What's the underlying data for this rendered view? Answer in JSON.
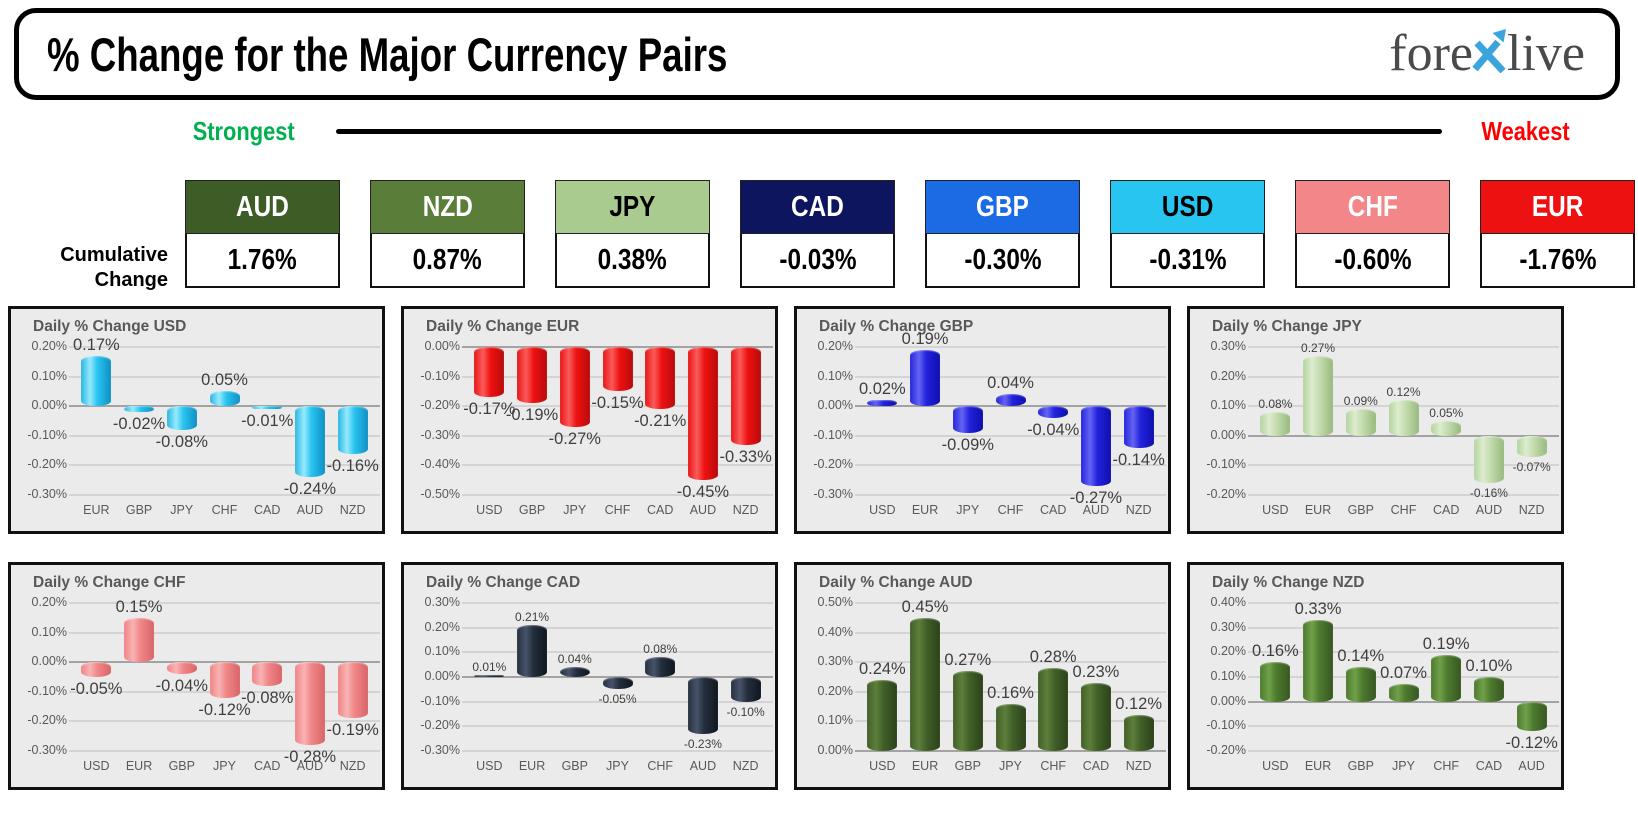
{
  "header": {
    "title": "% Change for the Major Currency Pairs",
    "logo": {
      "part1": "fore",
      "part2": "live",
      "x_color": "#3aa5dd",
      "text_color": "#4a4a4c"
    }
  },
  "legend": {
    "strongest": "Strongest",
    "weakest": "Weakest",
    "strongest_color": "#00b050",
    "weakest_color": "#ff0000"
  },
  "cumulative": {
    "label_line1": "Cumulative",
    "label_line2": "Change",
    "items": [
      {
        "code": "AUD",
        "value": "1.76%",
        "bg": "#3e5c26",
        "fg": "#ffffff"
      },
      {
        "code": "NZD",
        "value": "0.87%",
        "bg": "#5a7d39",
        "fg": "#ffffff"
      },
      {
        "code": "JPY",
        "value": "0.38%",
        "bg": "#a9cb8f",
        "fg": "#000000"
      },
      {
        "code": "CAD",
        "value": "-0.03%",
        "bg": "#0c155e",
        "fg": "#ffffff"
      },
      {
        "code": "GBP",
        "value": "-0.30%",
        "bg": "#1b6ce4",
        "fg": "#ffffff"
      },
      {
        "code": "USD",
        "value": "-0.31%",
        "bg": "#28c5f0",
        "fg": "#000000"
      },
      {
        "code": "CHF",
        "value": "-0.60%",
        "bg": "#f38688",
        "fg": "#ffffff"
      },
      {
        "code": "EUR",
        "value": "-1.76%",
        "bg": "#ee1111",
        "fg": "#ffffff"
      }
    ]
  },
  "chart_data": [
    {
      "type": "bar",
      "key": "USD",
      "title": "Daily % Change USD",
      "categories": [
        "EUR",
        "GBP",
        "JPY",
        "CHF",
        "CAD",
        "AUD",
        "NZD"
      ],
      "values": [
        0.17,
        -0.02,
        -0.08,
        0.05,
        -0.01,
        -0.24,
        -0.16
      ],
      "labels": [
        "0.17%",
        "-0.02%",
        "-0.08%",
        "0.05%",
        "-0.01%",
        "-0.24%",
        "-0.16%"
      ],
      "ticks": [
        "0.20%",
        "0.10%",
        "0.00%",
        "-0.10%",
        "-0.20%",
        "-0.30%"
      ],
      "ylim": [
        -0.3,
        0.2
      ],
      "label_size": "large",
      "grid": true,
      "legend": "none",
      "gradient": [
        "#2ab6e3",
        "#96eafc",
        "#29c3ef",
        "#0f90c4"
      ]
    },
    {
      "type": "bar",
      "key": "EUR",
      "title": "Daily % Change EUR",
      "categories": [
        "USD",
        "GBP",
        "JPY",
        "CHF",
        "CAD",
        "AUD",
        "NZD"
      ],
      "values": [
        -0.17,
        -0.19,
        -0.27,
        -0.15,
        -0.21,
        -0.45,
        -0.33
      ],
      "labels": [
        "-0.17%",
        "-0.19%",
        "-0.27%",
        "-0.15%",
        "-0.21%",
        "-0.45%",
        "-0.33%"
      ],
      "ticks": [
        "0.00%",
        "-0.10%",
        "-0.20%",
        "-0.30%",
        "-0.40%",
        "-0.50%"
      ],
      "ylim": [
        -0.5,
        0.0
      ],
      "label_size": "large",
      "grid": true,
      "legend": "none",
      "gradient": [
        "#e81616",
        "#fb5b5b",
        "#ee1111",
        "#b80b0b"
      ]
    },
    {
      "type": "bar",
      "key": "GBP",
      "title": "Daily % Change GBP",
      "categories": [
        "USD",
        "EUR",
        "JPY",
        "CHF",
        "CAD",
        "AUD",
        "NZD"
      ],
      "values": [
        0.02,
        0.19,
        -0.09,
        0.04,
        -0.04,
        -0.27,
        -0.14
      ],
      "labels": [
        "0.02%",
        "0.19%",
        "-0.09%",
        "0.04%",
        "-0.04%",
        "-0.27%",
        "-0.14%"
      ],
      "ticks": [
        "0.20%",
        "0.10%",
        "0.00%",
        "-0.10%",
        "-0.20%",
        "-0.30%"
      ],
      "ylim": [
        -0.3,
        0.2
      ],
      "label_size": "large",
      "grid": true,
      "legend": "none",
      "gradient": [
        "#2626dd",
        "#6363f2",
        "#2222dd",
        "#0f0fae"
      ]
    },
    {
      "type": "bar",
      "key": "JPY",
      "title": "Daily % Change JPY",
      "categories": [
        "USD",
        "EUR",
        "GBP",
        "CHF",
        "CAD",
        "AUD",
        "NZD"
      ],
      "values": [
        0.08,
        0.27,
        0.09,
        0.12,
        0.05,
        -0.16,
        -0.07
      ],
      "labels": [
        "0.08%",
        "0.27%",
        "0.09%",
        "0.12%",
        "0.05%",
        "-0.16%",
        "-0.07%"
      ],
      "ticks": [
        "0.30%",
        "0.20%",
        "0.10%",
        "0.00%",
        "-0.10%",
        "-0.20%"
      ],
      "ylim": [
        -0.2,
        0.3
      ],
      "label_size": "small",
      "grid": true,
      "legend": "none",
      "gradient": [
        "#b4d49e",
        "#ddeccf",
        "#c4dcae",
        "#97b97e"
      ]
    },
    {
      "type": "bar",
      "key": "CHF",
      "title": "Daily % Change CHF",
      "categories": [
        "USD",
        "EUR",
        "GBP",
        "JPY",
        "CAD",
        "AUD",
        "NZD"
      ],
      "values": [
        -0.05,
        0.15,
        -0.04,
        -0.12,
        -0.08,
        -0.28,
        -0.19
      ],
      "labels": [
        "-0.05%",
        "0.15%",
        "-0.04%",
        "-0.12%",
        "-0.08%",
        "-0.28%",
        "-0.19%"
      ],
      "ticks": [
        "0.20%",
        "0.10%",
        "0.00%",
        "-0.10%",
        "-0.20%",
        "-0.30%"
      ],
      "ylim": [
        -0.3,
        0.2
      ],
      "label_size": "large",
      "grid": true,
      "legend": "none",
      "gradient": [
        "#ef8486",
        "#f8b3b4",
        "#f08688",
        "#d96568"
      ]
    },
    {
      "type": "bar",
      "key": "CAD",
      "title": "Daily % Change CAD",
      "categories": [
        "USD",
        "EUR",
        "GBP",
        "JPY",
        "CHF",
        "AUD",
        "NZD"
      ],
      "values": [
        0.01,
        0.21,
        0.04,
        -0.05,
        0.08,
        -0.23,
        -0.1
      ],
      "labels": [
        "0.01%",
        "0.21%",
        "0.04%",
        "-0.05%",
        "0.08%",
        "-0.23%",
        "-0.10%"
      ],
      "ticks": [
        "0.30%",
        "0.20%",
        "0.10%",
        "0.00%",
        "-0.10%",
        "-0.20%",
        "-0.30%"
      ],
      "ylim": [
        -0.3,
        0.3
      ],
      "label_size": "small",
      "grid": true,
      "legend": "none",
      "gradient": [
        "#28313f",
        "#46536a",
        "#242e3c",
        "#10161f"
      ]
    },
    {
      "type": "bar",
      "key": "AUD",
      "title": "Daily % Change AUD",
      "categories": [
        "USD",
        "EUR",
        "GBP",
        "JPY",
        "CHF",
        "CAD",
        "NZD"
      ],
      "values": [
        0.24,
        0.45,
        0.27,
        0.16,
        0.28,
        0.23,
        0.12
      ],
      "labels": [
        "0.24%",
        "0.45%",
        "0.27%",
        "0.16%",
        "0.28%",
        "0.23%",
        "0.12%"
      ],
      "ticks": [
        "0.50%",
        "0.40%",
        "0.30%",
        "0.20%",
        "0.10%",
        "0.00%"
      ],
      "ylim": [
        0.0,
        0.5
      ],
      "label_size": "large",
      "grid": true,
      "legend": "none",
      "gradient": [
        "#42602a",
        "#5d7f3b",
        "#406028",
        "#2b421a"
      ]
    },
    {
      "type": "bar",
      "key": "NZD",
      "title": "Daily % Change NZD",
      "categories": [
        "USD",
        "EUR",
        "GBP",
        "JPY",
        "CHF",
        "CAD",
        "AUD"
      ],
      "values": [
        0.16,
        0.33,
        0.14,
        0.07,
        0.19,
        0.1,
        -0.12
      ],
      "labels": [
        "0.16%",
        "0.33%",
        "0.14%",
        "0.07%",
        "0.19%",
        "0.10%",
        "-0.12%"
      ],
      "ticks": [
        "0.40%",
        "0.30%",
        "0.20%",
        "0.10%",
        "0.00%",
        "-0.10%",
        "-0.20%"
      ],
      "ylim": [
        -0.2,
        0.4
      ],
      "label_size": "large",
      "grid": true,
      "legend": "none",
      "gradient": [
        "#4f7a2f",
        "#6fa04a",
        "#4e7a2e",
        "#375722"
      ]
    }
  ]
}
